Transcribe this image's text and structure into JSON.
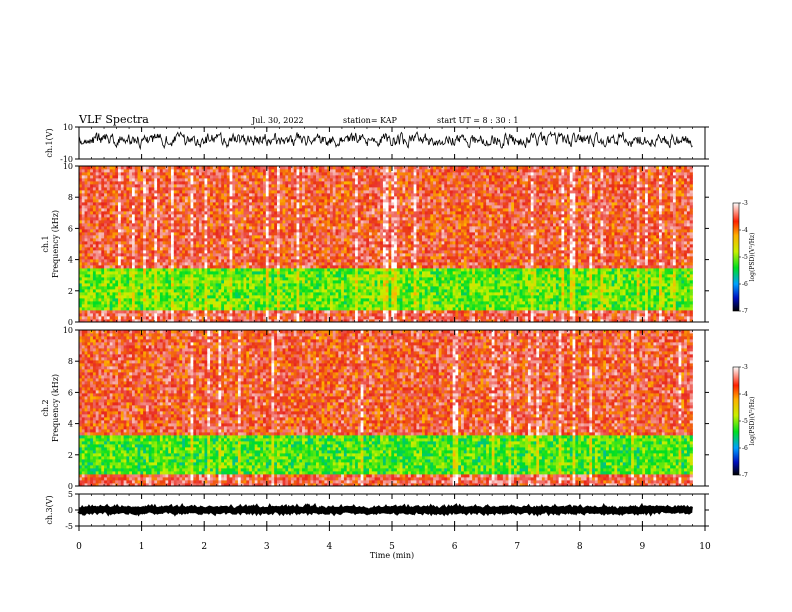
{
  "header": {
    "title": "VLF Spectra",
    "date": "Jul. 30, 2022",
    "station": "station= KAP",
    "start": "start UT =  8 : 30 : 1"
  },
  "colors": {
    "spec_hi": "#e8261c",
    "spec_mid": "#f5e20a",
    "spec_lo": "#2ecc33",
    "waveform": "#000000"
  },
  "chart_data": [
    {
      "type": "line",
      "id": "ch1_waveform",
      "ylabel": "ch.1(V)",
      "ylim": [
        -10,
        10
      ],
      "yticks": [
        -10,
        10
      ],
      "xlim": [
        0,
        10
      ],
      "x_end": 9.8,
      "mean": 2,
      "amplitude": 4
    },
    {
      "type": "heatmap",
      "id": "ch1_spectrogram",
      "ylabel": "ch.1",
      "ylabel2": "Frequency (kHz)",
      "ylim": [
        0,
        10
      ],
      "yticks": [
        0,
        2,
        4,
        6,
        8,
        10
      ],
      "xlim": [
        0,
        10
      ],
      "x_end": 9.8,
      "bands_khz": [
        {
          "from": 0.0,
          "to": 0.8,
          "level": -3.6
        },
        {
          "from": 0.8,
          "to": 3.4,
          "level": -5.1
        },
        {
          "from": 3.4,
          "to": 10.0,
          "level": -3.7
        }
      ],
      "colorbar": {
        "label": "log(PSD)(V²/Hz)",
        "min": -7,
        "max": -3,
        "ticks": [
          -3,
          -4,
          -5,
          -6,
          -7
        ]
      }
    },
    {
      "type": "heatmap",
      "id": "ch2_spectrogram",
      "ylabel": "ch.2",
      "ylabel2": "Frequency (kHz)",
      "ylim": [
        0,
        10
      ],
      "yticks": [
        0,
        2,
        4,
        6,
        8,
        10
      ],
      "xlim": [
        0,
        10
      ],
      "x_end": 9.8,
      "bands_khz": [
        {
          "from": 0.0,
          "to": 0.8,
          "level": -3.6
        },
        {
          "from": 0.8,
          "to": 3.2,
          "level": -5.2
        },
        {
          "from": 3.2,
          "to": 10.0,
          "level": -3.7
        }
      ],
      "colorbar": {
        "label": "log(PSD)(V²/Hz)",
        "min": -7,
        "max": -3,
        "ticks": [
          -3,
          -4,
          -5,
          -6,
          -7
        ]
      }
    },
    {
      "type": "line",
      "id": "ch3_waveform",
      "ylabel": "ch.3(V)",
      "ylim": [
        -5,
        5
      ],
      "yticks": [
        -5,
        0,
        5
      ],
      "xlim": [
        0,
        10
      ],
      "x_end": 9.8,
      "mean": 0,
      "amplitude": 0.4,
      "xlabel": "Time (min)",
      "xticks": [
        0,
        1,
        2,
        3,
        4,
        5,
        6,
        7,
        8,
        9,
        10
      ]
    }
  ]
}
